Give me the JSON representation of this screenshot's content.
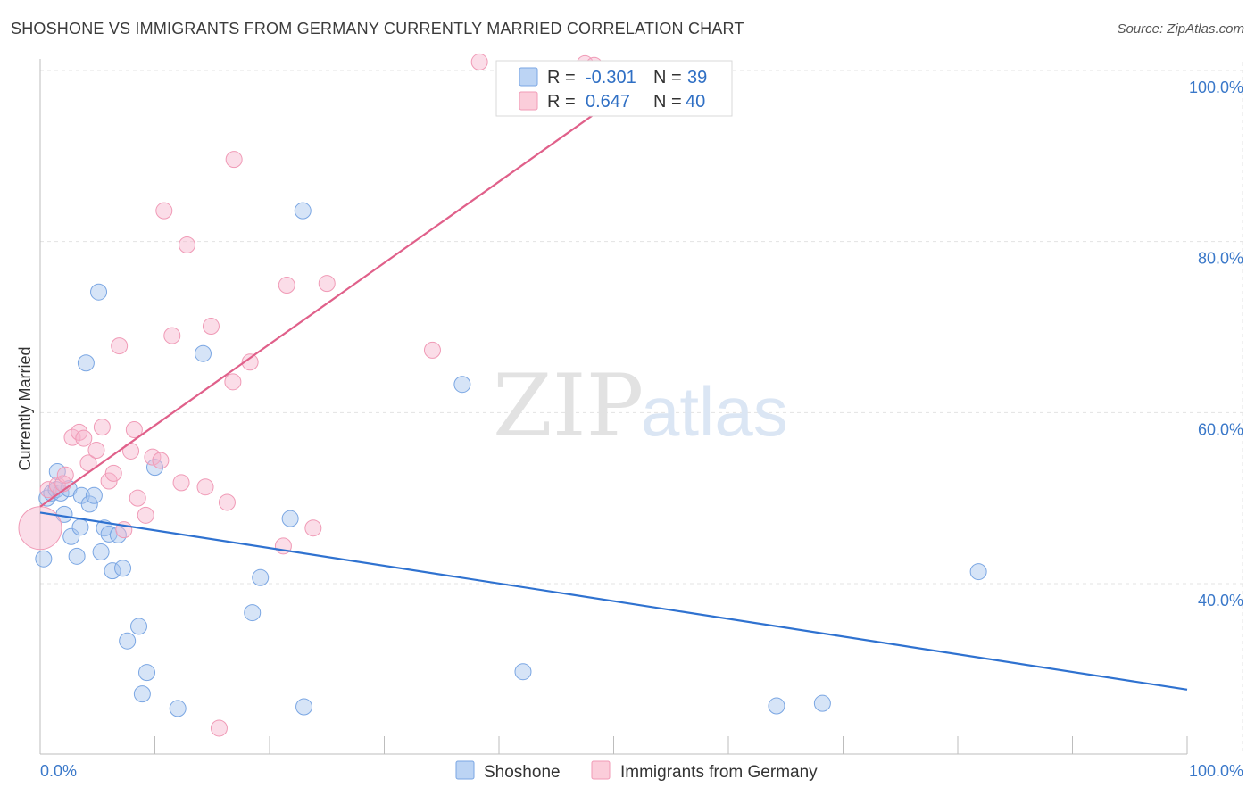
{
  "title": "SHOSHONE VS IMMIGRANTS FROM GERMANY CURRENTLY MARRIED CORRELATION CHART",
  "source": "Source: ZipAtlas.com",
  "watermark": {
    "zip": "ZIP",
    "atlas": "atlas"
  },
  "chart_data": {
    "type": "scatter",
    "title": "SHOSHONE VS IMMIGRANTS FROM GERMANY CURRENTLY MARRIED CORRELATION CHART",
    "xlabel": "",
    "ylabel": "Currently Married",
    "xlim": [
      0,
      100
    ],
    "ylim": [
      22,
      102
    ],
    "x_tick_labels": [
      "0.0%",
      "100.0%"
    ],
    "y_ticks": [
      40,
      60,
      80,
      100
    ],
    "y_tick_labels": [
      "40.0%",
      "60.0%",
      "80.0%",
      "100.0%"
    ],
    "legend": [
      {
        "label": "R = ",
        "r": "-0.301",
        "n_label": "N = ",
        "n": "39"
      },
      {
        "label": "R = ",
        "r": "0.647",
        "n_label": "N = ",
        "n": "40"
      }
    ],
    "series": [
      {
        "name": "Shoshone",
        "color": "#6fa1e3",
        "line_color": "#2f72d0",
        "trend": {
          "x": [
            0,
            100
          ],
          "y": [
            48.3,
            27.6
          ]
        },
        "points": [
          {
            "x": 0.3,
            "y": 42.9
          },
          {
            "x": 0.6,
            "y": 50.0
          },
          {
            "x": 1.0,
            "y": 50.6
          },
          {
            "x": 1.4,
            "y": 51.0
          },
          {
            "x": 1.5,
            "y": 53.1
          },
          {
            "x": 1.8,
            "y": 50.6
          },
          {
            "x": 2.1,
            "y": 48.1
          },
          {
            "x": 2.5,
            "y": 51.1
          },
          {
            "x": 2.7,
            "y": 45.5
          },
          {
            "x": 3.2,
            "y": 43.2
          },
          {
            "x": 3.5,
            "y": 46.6
          },
          {
            "x": 3.6,
            "y": 50.3
          },
          {
            "x": 4.0,
            "y": 65.8
          },
          {
            "x": 4.3,
            "y": 49.3
          },
          {
            "x": 4.7,
            "y": 50.3
          },
          {
            "x": 5.1,
            "y": 74.1
          },
          {
            "x": 5.3,
            "y": 43.7
          },
          {
            "x": 5.6,
            "y": 46.5
          },
          {
            "x": 6.0,
            "y": 45.8
          },
          {
            "x": 6.3,
            "y": 41.5
          },
          {
            "x": 6.8,
            "y": 45.7
          },
          {
            "x": 7.2,
            "y": 41.8
          },
          {
            "x": 7.6,
            "y": 33.3
          },
          {
            "x": 8.6,
            "y": 35.0
          },
          {
            "x": 8.9,
            "y": 27.1
          },
          {
            "x": 9.3,
            "y": 29.6
          },
          {
            "x": 10.0,
            "y": 53.6
          },
          {
            "x": 12.0,
            "y": 25.4
          },
          {
            "x": 14.2,
            "y": 66.9
          },
          {
            "x": 18.5,
            "y": 36.6
          },
          {
            "x": 19.2,
            "y": 40.7
          },
          {
            "x": 21.8,
            "y": 47.6
          },
          {
            "x": 22.9,
            "y": 83.6
          },
          {
            "x": 23.0,
            "y": 25.6
          },
          {
            "x": 36.8,
            "y": 63.3
          },
          {
            "x": 42.1,
            "y": 29.7
          },
          {
            "x": 64.2,
            "y": 25.7
          },
          {
            "x": 68.2,
            "y": 26.0
          },
          {
            "x": 81.8,
            "y": 41.4
          }
        ]
      },
      {
        "name": "Immigrants from Germany",
        "color": "#f4a3bd",
        "line_color": "#e0608a",
        "trend": {
          "x": [
            0,
            50
          ],
          "y": [
            49.0,
            96.5
          ]
        },
        "points": [
          {
            "x": 0.0,
            "y": 46.5,
            "big": true
          },
          {
            "x": 0.7,
            "y": 51.0
          },
          {
            "x": 1.5,
            "y": 51.5
          },
          {
            "x": 2.0,
            "y": 51.7
          },
          {
            "x": 2.2,
            "y": 52.7
          },
          {
            "x": 2.8,
            "y": 57.1
          },
          {
            "x": 3.4,
            "y": 57.7
          },
          {
            "x": 3.8,
            "y": 57.0
          },
          {
            "x": 4.2,
            "y": 54.1
          },
          {
            "x": 4.9,
            "y": 55.6
          },
          {
            "x": 5.4,
            "y": 58.3
          },
          {
            "x": 6.0,
            "y": 52.0
          },
          {
            "x": 6.4,
            "y": 52.9
          },
          {
            "x": 6.9,
            "y": 67.8
          },
          {
            "x": 7.3,
            "y": 46.3
          },
          {
            "x": 7.9,
            "y": 55.5
          },
          {
            "x": 8.2,
            "y": 58.0
          },
          {
            "x": 8.5,
            "y": 50.0
          },
          {
            "x": 9.2,
            "y": 48.0
          },
          {
            "x": 9.8,
            "y": 54.8
          },
          {
            "x": 10.5,
            "y": 54.4
          },
          {
            "x": 10.8,
            "y": 83.6
          },
          {
            "x": 11.5,
            "y": 69.0
          },
          {
            "x": 12.3,
            "y": 51.8
          },
          {
            "x": 12.8,
            "y": 79.6
          },
          {
            "x": 14.4,
            "y": 51.3
          },
          {
            "x": 14.9,
            "y": 70.1
          },
          {
            "x": 15.6,
            "y": 23.1
          },
          {
            "x": 16.3,
            "y": 49.5
          },
          {
            "x": 16.8,
            "y": 63.6
          },
          {
            "x": 16.9,
            "y": 89.6
          },
          {
            "x": 18.3,
            "y": 65.9
          },
          {
            "x": 21.2,
            "y": 44.4
          },
          {
            "x": 21.5,
            "y": 74.9
          },
          {
            "x": 23.8,
            "y": 46.5
          },
          {
            "x": 25.0,
            "y": 75.1
          },
          {
            "x": 34.2,
            "y": 67.3
          },
          {
            "x": 38.3,
            "y": 101.0
          },
          {
            "x": 47.5,
            "y": 100.8
          },
          {
            "x": 48.3,
            "y": 100.6
          }
        ]
      }
    ]
  }
}
